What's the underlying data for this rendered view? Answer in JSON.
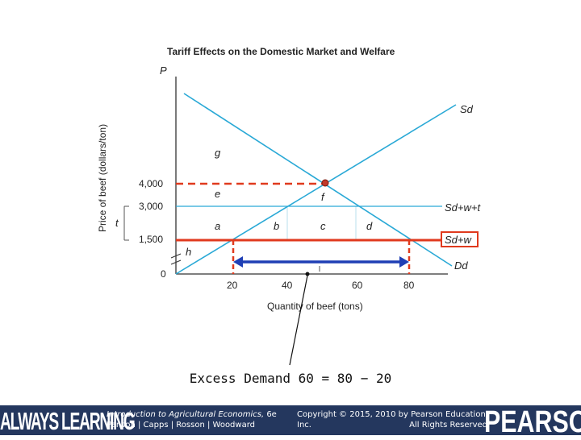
{
  "figure": {
    "title": "Tariff Effects on the Domestic Market and Welfare",
    "y_axis_letter": "P",
    "y_label": "Price of beef (dollars/ton)",
    "x_label": "Quantity of beef (tons)",
    "y_ticks": [
      "4,000",
      "3,000",
      "1,500",
      "0"
    ],
    "x_ticks": [
      "20",
      "40",
      "60",
      "80"
    ],
    "tariff_label": "t",
    "curve_labels": {
      "sd": "Sd",
      "sdwt": "Sd+w+t",
      "sdw": "Sd+w",
      "dd": "Dd"
    },
    "areas": [
      "g",
      "e",
      "f",
      "a",
      "b",
      "c",
      "d",
      "h"
    ],
    "colors": {
      "curve": "#2aa9d6",
      "highlight": "#e03a1e",
      "arrow": "#1f3fb5",
      "footer_bg": "#24375e"
    }
  },
  "caption": "Excess Demand 60 = 80 − 20",
  "footer": {
    "brand_left": "ALWAYS LEARNING",
    "book_title": "Introduction to Agricultural Economics,",
    "book_edition": "6e",
    "authors": "Penson | Capps | Rosson | Woodward",
    "copyright": "Copyright © 2015, 2010 by Pearson Education, Inc.",
    "rights": "All Rights Reserved",
    "brand_right": "PEARSON"
  }
}
